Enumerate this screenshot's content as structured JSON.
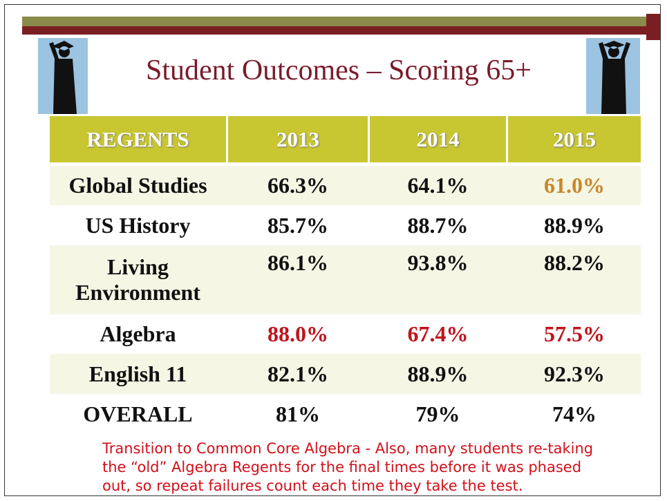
{
  "header": {
    "title": "Student Outcomes – Scoring 65+"
  },
  "table": {
    "header": [
      "REGENTS",
      "2013",
      "2014",
      "2015"
    ],
    "rows": [
      [
        "Global Studies",
        "66.3%",
        "64.1%",
        "61.0%"
      ],
      [
        "US History",
        "85.7%",
        "88.7%",
        "88.9%"
      ],
      [
        "Living Environment",
        "86.1%",
        "93.8%",
        "88.2%"
      ],
      [
        "Algebra",
        "88.0%",
        "67.4%",
        "57.5%"
      ],
      [
        "English 11",
        "82.1%",
        "88.9%",
        "92.3%"
      ],
      [
        "OVERALL",
        "81%",
        "79%",
        "74%"
      ]
    ]
  },
  "note": "Transition to Common Core Algebra - Also, many students re-taking the “old” Algebra Regents for the final times before it was phased out, so repeat failures count each time they take the test."
}
